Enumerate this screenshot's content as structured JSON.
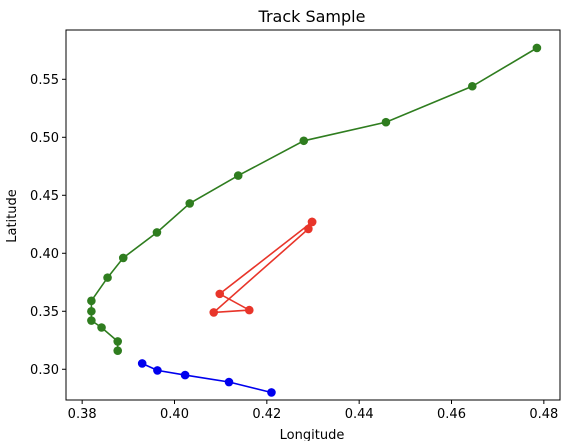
{
  "chart_data": {
    "type": "line",
    "title": "Track Sample",
    "xlabel": "Longitude",
    "ylabel": "Latitude",
    "xlim": [
      0.3765,
      0.4835
    ],
    "ylim": [
      0.2735,
      0.5925
    ],
    "xticks": [
      0.38,
      0.4,
      0.42,
      0.44,
      0.46,
      0.48
    ],
    "xtick_labels": [
      "0.38",
      "0.40",
      "0.42",
      "0.44",
      "0.46",
      "0.48"
    ],
    "yticks": [
      0.3,
      0.35,
      0.4,
      0.45,
      0.5,
      0.55
    ],
    "ytick_labels": [
      "0.30",
      "0.35",
      "0.40",
      "0.45",
      "0.50",
      "0.55"
    ],
    "grid": false,
    "legend": "none",
    "series": [
      {
        "color": "#2f7d1f",
        "points": [
          [
            0.4785,
            0.577
          ],
          [
            0.4645,
            0.544
          ],
          [
            0.4458,
            0.513
          ],
          [
            0.428,
            0.497
          ],
          [
            0.4138,
            0.467
          ],
          [
            0.4033,
            0.443
          ],
          [
            0.3962,
            0.418
          ],
          [
            0.3889,
            0.396
          ],
          [
            0.3855,
            0.379
          ],
          [
            0.382,
            0.359
          ],
          [
            0.382,
            0.35
          ],
          [
            0.382,
            0.342
          ],
          [
            0.3842,
            0.336
          ],
          [
            0.3877,
            0.324
          ],
          [
            0.3877,
            0.316
          ]
        ]
      },
      {
        "color": "#e8352a",
        "points": [
          [
            0.4298,
            0.427
          ],
          [
            0.429,
            0.421
          ],
          [
            0.4085,
            0.349
          ],
          [
            0.4162,
            0.351
          ],
          [
            0.4098,
            0.365
          ],
          [
            0.4298,
            0.427
          ]
        ]
      },
      {
        "color": "#0000ee",
        "points": [
          [
            0.393,
            0.305
          ],
          [
            0.3963,
            0.299
          ],
          [
            0.4023,
            0.295
          ],
          [
            0.4118,
            0.289
          ],
          [
            0.421,
            0.28
          ]
        ]
      }
    ]
  }
}
